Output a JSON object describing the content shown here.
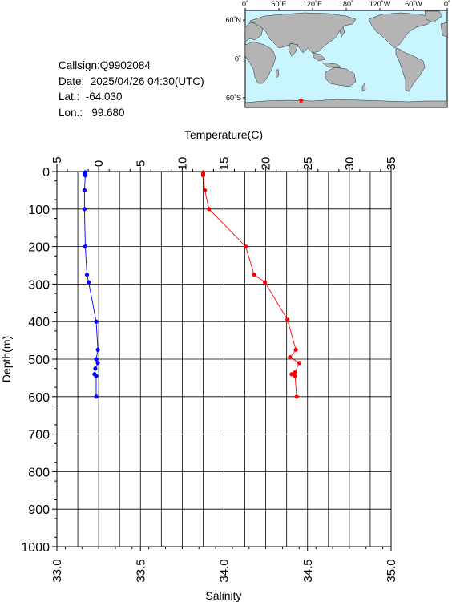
{
  "info": {
    "callsign": "Callsign:Q9902084",
    "date": "Date:  2025/04/26 04:30(UTC)",
    "lat": "Lat.:  -64.030",
    "lon": "Lon.:   99.680"
  },
  "map": {
    "top_ticks": [
      "0˚",
      "60˚E",
      "120˚E",
      "180˚",
      "120˚W",
      "60˚W",
      "0˚"
    ],
    "lat_ticks": [
      "60˚N",
      "0˚",
      "60˚S"
    ],
    "marker": {
      "lon": 99.68,
      "lat": -64.03,
      "color": "#ff0000"
    },
    "colors": {
      "ocean": "#c8f5ff",
      "land": "#b4b4b4"
    }
  },
  "chart_data": {
    "type": "line",
    "ylabel": "Depth(m)",
    "y_ticks": [
      "0",
      "100",
      "200",
      "300",
      "400",
      "500",
      "600",
      "700",
      "800",
      "900",
      "1000"
    ],
    "ylim": [
      1000,
      0
    ],
    "grid": true,
    "top_axis": {
      "label": "Temperature(C)",
      "range": [
        -5,
        35
      ],
      "ticks": [
        "−5",
        "0",
        "5",
        "10",
        "15",
        "20",
        "25",
        "30",
        "35"
      ]
    },
    "bottom_axis": {
      "label": "Salinity",
      "range": [
        33.0,
        35.0
      ],
      "ticks": [
        "33.0",
        "33.5",
        "34.0",
        "34.5",
        "35.0"
      ]
    },
    "series": [
      {
        "axis": "salinity",
        "color": "#0000ff",
        "points": [
          {
            "x": 33.17,
            "depth": 2
          },
          {
            "x": 33.17,
            "depth": 6
          },
          {
            "x": 33.17,
            "depth": 10
          },
          {
            "x": 33.165,
            "depth": 50
          },
          {
            "x": 33.165,
            "depth": 100
          },
          {
            "x": 33.17,
            "depth": 200
          },
          {
            "x": 33.18,
            "depth": 275
          },
          {
            "x": 33.19,
            "depth": 295
          },
          {
            "x": 33.235,
            "depth": 400
          },
          {
            "x": 33.245,
            "depth": 475
          },
          {
            "x": 33.235,
            "depth": 500
          },
          {
            "x": 33.245,
            "depth": 510
          },
          {
            "x": 33.23,
            "depth": 525
          },
          {
            "x": 33.225,
            "depth": 540
          },
          {
            "x": 33.235,
            "depth": 545
          },
          {
            "x": 33.235,
            "depth": 600
          }
        ]
      },
      {
        "axis": "temperature",
        "color": "#ff0000",
        "points": [
          {
            "x": 12.5,
            "depth": 2
          },
          {
            "x": 12.5,
            "depth": 6
          },
          {
            "x": 12.5,
            "depth": 10
          },
          {
            "x": 12.7,
            "depth": 50
          },
          {
            "x": 13.2,
            "depth": 100
          },
          {
            "x": 17.6,
            "depth": 200
          },
          {
            "x": 18.6,
            "depth": 275
          },
          {
            "x": 19.9,
            "depth": 295
          },
          {
            "x": 22.6,
            "depth": 395
          },
          {
            "x": 23.6,
            "depth": 475
          },
          {
            "x": 22.9,
            "depth": 495
          },
          {
            "x": 24.0,
            "depth": 510
          },
          {
            "x": 23.5,
            "depth": 535
          },
          {
            "x": 23.1,
            "depth": 540
          },
          {
            "x": 23.5,
            "depth": 545
          },
          {
            "x": 23.7,
            "depth": 600
          }
        ]
      }
    ]
  }
}
